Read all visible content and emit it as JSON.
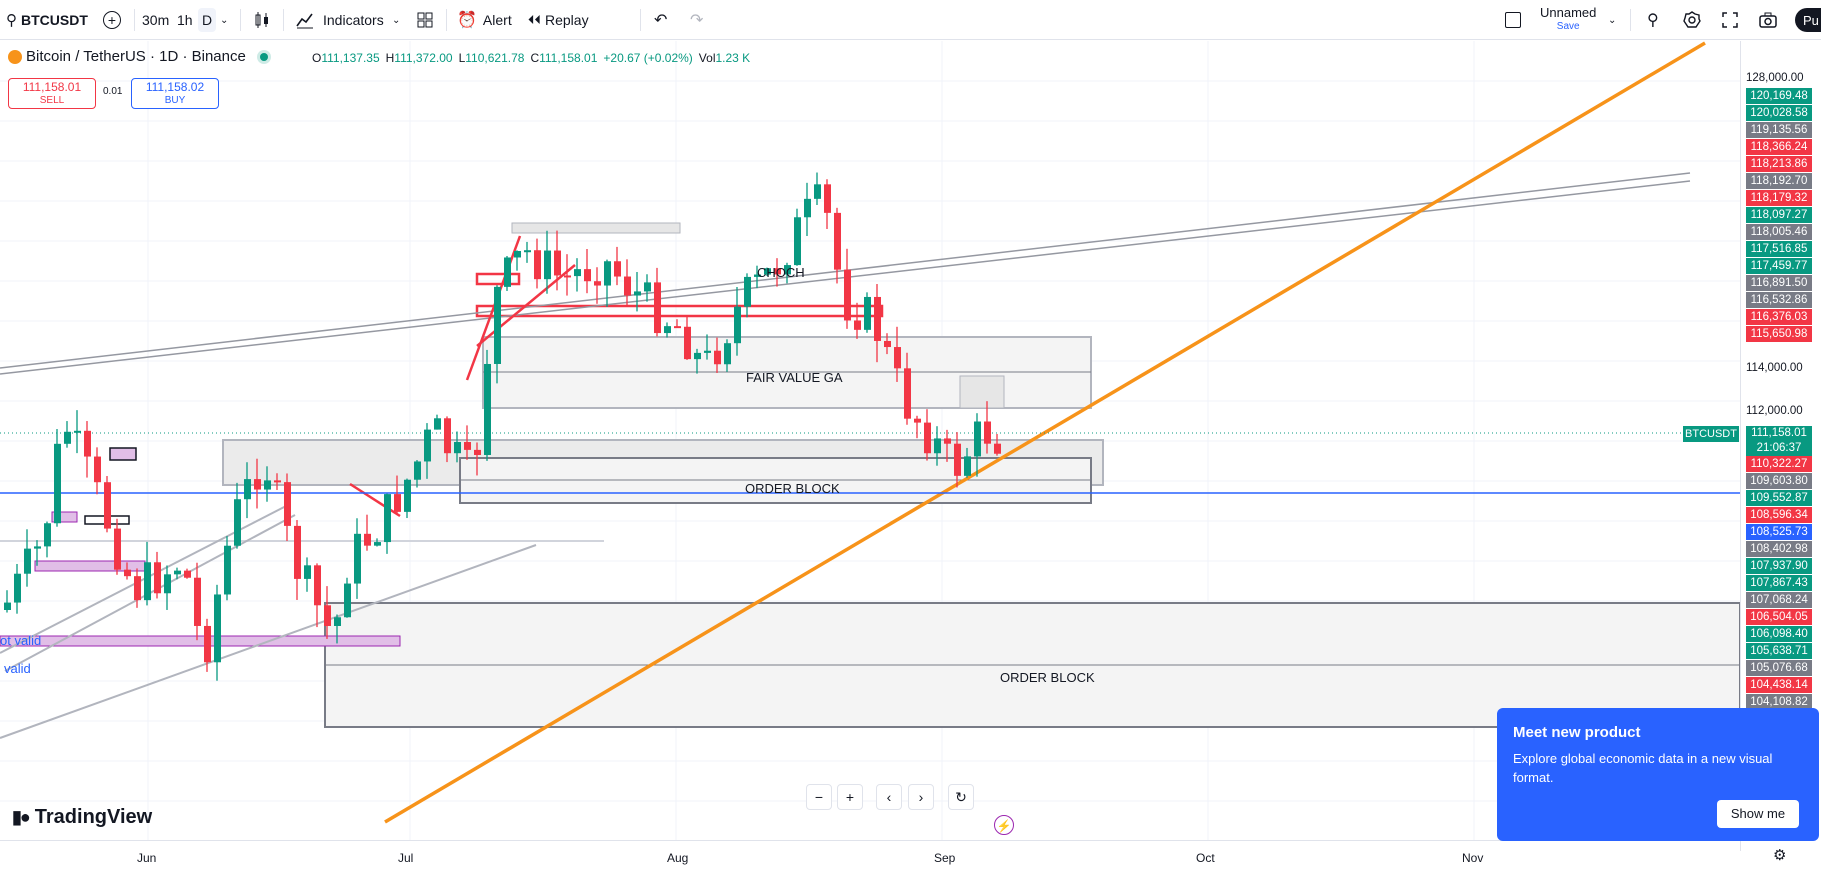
{
  "toolbar": {
    "symbol": "BTCUSDT",
    "intervals": [
      "30m",
      "1h",
      "D"
    ],
    "indicators_label": "Indicators",
    "alert_label": "Alert",
    "replay_label": "Replay",
    "layout_name": "Unnamed",
    "layout_save": "Save",
    "publish_label": "Pu"
  },
  "legend": {
    "title": "Bitcoin / TetherUS · 1D · Binance",
    "ohlc": [
      {
        "k": "O",
        "v": "111,137.35"
      },
      {
        "k": "H",
        "v": "111,372.00"
      },
      {
        "k": "L",
        "v": "110,621.78"
      },
      {
        "k": "C",
        "v": "111,158.01"
      }
    ],
    "change": "+20.67 (+0.02%)",
    "vol_label": "Vol",
    "vol_value": "1.23 K"
  },
  "trade": {
    "sell_price": "111,158.01",
    "sell_label": "SELL",
    "spread": "0.01",
    "buy_price": "111,158.02",
    "buy_label": "BUY"
  },
  "price_axis": {
    "ticks": [
      "128,000.00",
      "114,000.00",
      "112,000.00"
    ],
    "labels": [
      {
        "v": "120,169.48",
        "c": "#089981"
      },
      {
        "v": "120,028.58",
        "c": "#089981"
      },
      {
        "v": "119,135.56",
        "c": "#787b86"
      },
      {
        "v": "118,366.24",
        "c": "#f23645"
      },
      {
        "v": "118,213.86",
        "c": "#f23645"
      },
      {
        "v": "118,192.70",
        "c": "#787b86"
      },
      {
        "v": "118,179.32",
        "c": "#f23645"
      },
      {
        "v": "118,097.27",
        "c": "#089981"
      },
      {
        "v": "118,005.46",
        "c": "#787b86"
      },
      {
        "v": "117,516.85",
        "c": "#089981"
      },
      {
        "v": "117,459.77",
        "c": "#089981"
      },
      {
        "v": "116,891.50",
        "c": "#787b86"
      },
      {
        "v": "116,532.86",
        "c": "#787b86"
      },
      {
        "v": "116,376.03",
        "c": "#f23645"
      },
      {
        "v": "115,650.98",
        "c": "#f23645"
      }
    ],
    "labels_low": [
      {
        "v": "110,322.27",
        "c": "#f23645"
      },
      {
        "v": "109,603.80",
        "c": "#787b86"
      },
      {
        "v": "109,552.87",
        "c": "#089981"
      },
      {
        "v": "108,596.34",
        "c": "#f23645"
      },
      {
        "v": "108,525.73",
        "c": "#2962ff"
      },
      {
        "v": "108,402.98",
        "c": "#787b86"
      },
      {
        "v": "107,937.90",
        "c": "#089981"
      },
      {
        "v": "107,867.43",
        "c": "#089981"
      },
      {
        "v": "107,068.24",
        "c": "#787b86"
      },
      {
        "v": "106,504.05",
        "c": "#f23645"
      },
      {
        "v": "106,098.40",
        "c": "#089981"
      },
      {
        "v": "105,638.71",
        "c": "#089981"
      },
      {
        "v": "105,076.68",
        "c": "#787b86"
      },
      {
        "v": "104,438.14",
        "c": "#f23645"
      },
      {
        "v": "104,108.82",
        "c": "#787b86"
      }
    ],
    "current_price": "111,158.01",
    "countdown": "21:06:37",
    "symbol_tag": "BTCUSDT"
  },
  "time_axis": [
    "Jun",
    "Jul",
    "Aug",
    "Sep",
    "Oct",
    "Nov"
  ],
  "annotations": {
    "fvg": "FAIR VALUE GA",
    "ob1": "ORDER BLOCK",
    "ob2": "ORDER BLOCK",
    "choch": "CHOCH",
    "not_valid": "ot valid",
    "valid": "valid"
  },
  "branding": {
    "logo_text": "TradingView"
  },
  "popup": {
    "title": "Meet new product",
    "body": "Explore global economic data in a new visual format.",
    "button": "Show me"
  },
  "colors": {
    "up": "#089981",
    "down": "#f23645",
    "accent": "#2962ff",
    "trendline": "#f7931a"
  }
}
